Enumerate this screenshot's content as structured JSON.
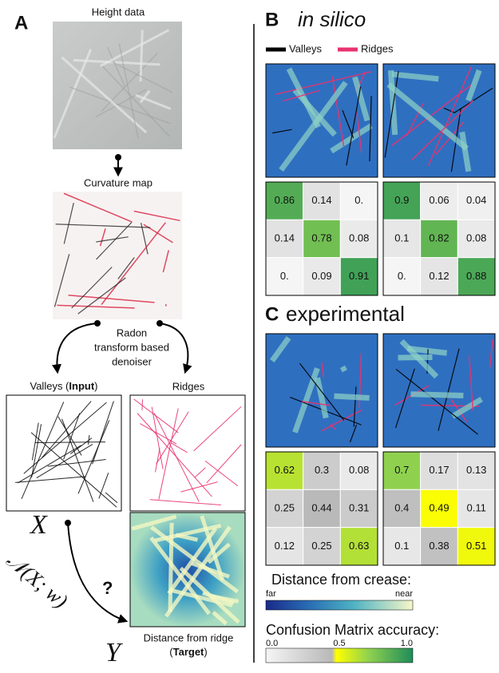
{
  "panel_a": {
    "label": "A",
    "height_title": "Height data",
    "curvature_title": "Curvature map",
    "denoiser": [
      "Radon",
      "transform based",
      "denoiser"
    ],
    "valleys_title": [
      "Valleys (",
      "Input",
      ")"
    ],
    "ridges_title": "Ridges",
    "x_symbol": "X",
    "y_symbol": "Y",
    "model": "𝒩(X; w)",
    "question": "?",
    "target_title": "Distance from ridge",
    "target_parts": [
      "(",
      "Target",
      ")"
    ]
  },
  "panel_b": {
    "label": "B",
    "title": "in silico",
    "legend": [
      "Valleys",
      "Ridges"
    ],
    "matrices": [
      [
        [
          "0.86",
          "0.14",
          "0."
        ],
        [
          "0.14",
          "0.78",
          "0.08"
        ],
        [
          "0.",
          "0.09",
          "0.91"
        ]
      ],
      [
        [
          "0.9",
          "0.06",
          "0.04"
        ],
        [
          "0.1",
          "0.82",
          "0.08"
        ],
        [
          "0.",
          "0.12",
          "0.88"
        ]
      ]
    ]
  },
  "panel_c": {
    "label": "C",
    "title": "experimental",
    "matrices": [
      [
        [
          "0.62",
          "0.3",
          "0.08"
        ],
        [
          "0.25",
          "0.44",
          "0.31"
        ],
        [
          "0.12",
          "0.25",
          "0.63"
        ]
      ],
      [
        [
          "0.7",
          "0.17",
          "0.13"
        ],
        [
          "0.4",
          "0.49",
          "0.11"
        ],
        [
          "0.1",
          "0.38",
          "0.51"
        ]
      ]
    ]
  },
  "distance_colorbar": {
    "title": "Distance from crease:",
    "low": "far",
    "high": "near"
  },
  "accuracy_colorbar": {
    "title": "Confusion Matrix accuracy:",
    "ticks": [
      "0.0",
      "0.5",
      "1.0"
    ]
  }
}
